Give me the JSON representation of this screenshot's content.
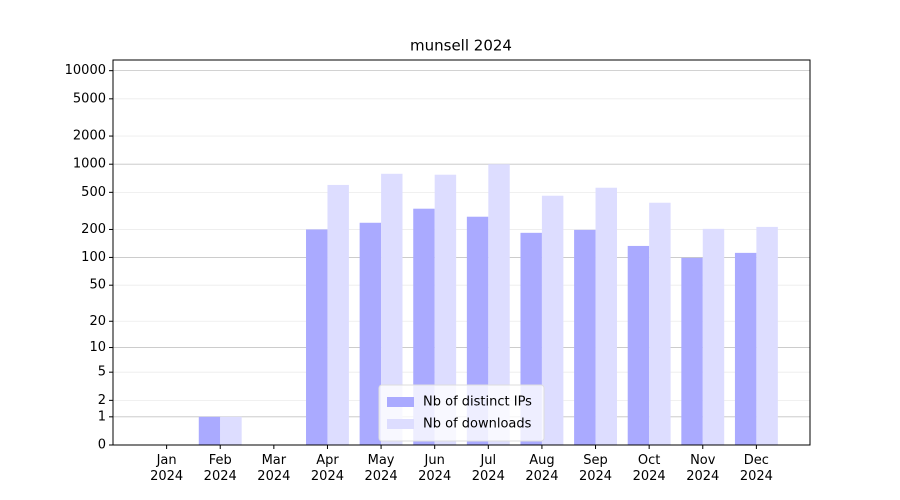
{
  "chart_data": {
    "type": "bar",
    "title": "munsell 2024",
    "categories": [
      "Jan\n2024",
      "Feb\n2024",
      "Mar\n2024",
      "Apr\n2024",
      "May\n2024",
      "Jun\n2024",
      "Jul\n2024",
      "Aug\n2024",
      "Sep\n2024",
      "Oct\n2024",
      "Nov\n2024",
      "Dec\n2024"
    ],
    "series": [
      {
        "name": "Nb of distinct IPs",
        "color": "#aaaaff",
        "values": [
          0,
          1,
          0,
          200,
          236,
          334,
          274,
          184,
          198,
          133,
          99,
          112
        ]
      },
      {
        "name": "Nb of downloads",
        "color": "#ddddff",
        "values": [
          0,
          1,
          0,
          600,
          790,
          772,
          1000,
          460,
          560,
          387,
          203,
          213
        ]
      }
    ],
    "ylim": [
      0,
      13000
    ],
    "yticks": [
      0,
      1,
      2,
      5,
      10,
      20,
      50,
      100,
      200,
      500,
      1000,
      2000,
      5000,
      10000
    ],
    "yscale": "log1p",
    "grid": true,
    "legend": "lower center"
  }
}
